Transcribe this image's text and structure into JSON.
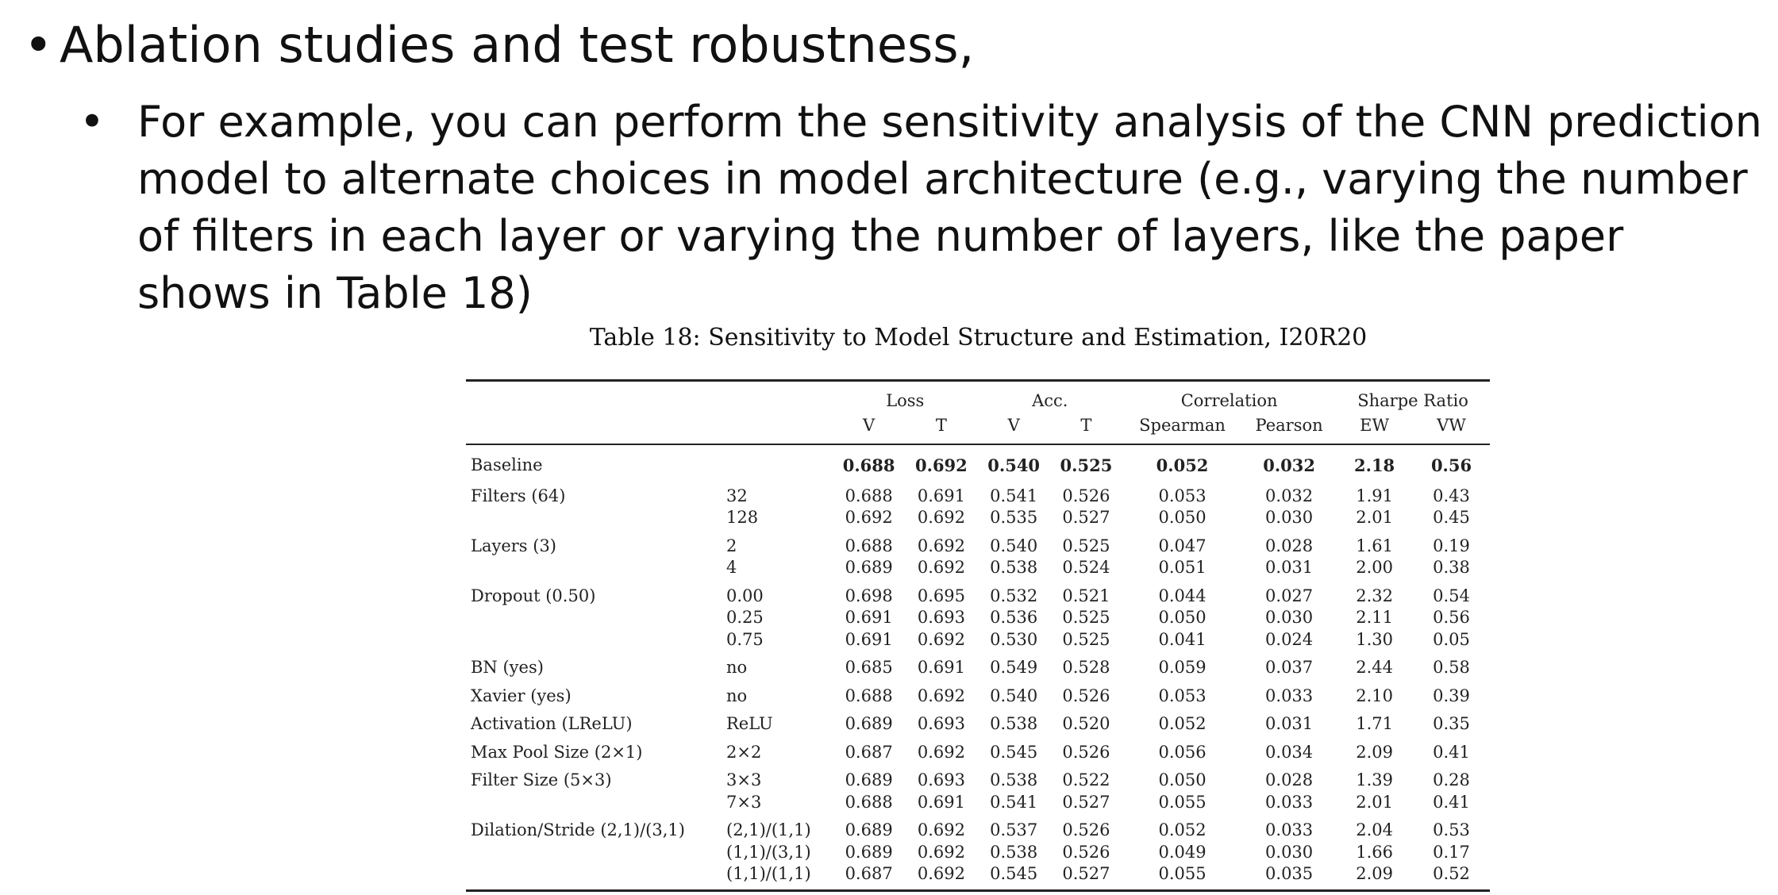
{
  "slide": {
    "bullet1": "Ablation studies and test robustness,",
    "bullet2": "For example, you can perform the sensitivity analysis of the CNN prediction model to alternate choices in model architecture (e.g., varying the number of filters in each layer or varying the number of layers, like the paper shows in Table 18)"
  },
  "table": {
    "caption": "Table 18: Sensitivity to Model Structure and Estimation, I20R20",
    "groups": [
      "Loss",
      "Acc.",
      "Correlation",
      "Sharpe Ratio"
    ],
    "subheaders": [
      "V",
      "T",
      "V",
      "T",
      "Spearman",
      "Pearson",
      "EW",
      "VW"
    ],
    "baseline": {
      "label": "Baseline",
      "values": [
        "0.688",
        "0.692",
        "0.540",
        "0.525",
        "0.052",
        "0.032",
        "2.18",
        "0.56"
      ]
    },
    "rows": [
      {
        "name": "Filters (64)",
        "var": "32",
        "v": [
          "0.688",
          "0.691",
          "0.541",
          "0.526",
          "0.053",
          "0.032",
          "1.91",
          "0.43"
        ]
      },
      {
        "name": "",
        "var": "128",
        "v": [
          "0.692",
          "0.692",
          "0.535",
          "0.527",
          "0.050",
          "0.030",
          "2.01",
          "0.45"
        ]
      },
      {
        "name": "Layers (3)",
        "var": "2",
        "v": [
          "0.688",
          "0.692",
          "0.540",
          "0.525",
          "0.047",
          "0.028",
          "1.61",
          "0.19"
        ]
      },
      {
        "name": "",
        "var": "4",
        "v": [
          "0.689",
          "0.692",
          "0.538",
          "0.524",
          "0.051",
          "0.031",
          "2.00",
          "0.38"
        ]
      },
      {
        "name": "Dropout (0.50)",
        "var": "0.00",
        "v": [
          "0.698",
          "0.695",
          "0.532",
          "0.521",
          "0.044",
          "0.027",
          "2.32",
          "0.54"
        ]
      },
      {
        "name": "",
        "var": "0.25",
        "v": [
          "0.691",
          "0.693",
          "0.536",
          "0.525",
          "0.050",
          "0.030",
          "2.11",
          "0.56"
        ]
      },
      {
        "name": "",
        "var": "0.75",
        "v": [
          "0.691",
          "0.692",
          "0.530",
          "0.525",
          "0.041",
          "0.024",
          "1.30",
          "0.05"
        ]
      },
      {
        "name": "BN (yes)",
        "var": "no",
        "v": [
          "0.685",
          "0.691",
          "0.549",
          "0.528",
          "0.059",
          "0.037",
          "2.44",
          "0.58"
        ]
      },
      {
        "name": "Xavier (yes)",
        "var": "no",
        "v": [
          "0.688",
          "0.692",
          "0.540",
          "0.526",
          "0.053",
          "0.033",
          "2.10",
          "0.39"
        ]
      },
      {
        "name": "Activation (LReLU)",
        "var": "ReLU",
        "v": [
          "0.689",
          "0.693",
          "0.538",
          "0.520",
          "0.052",
          "0.031",
          "1.71",
          "0.35"
        ]
      },
      {
        "name": "Max Pool Size (2×1)",
        "var": "2×2",
        "v": [
          "0.687",
          "0.692",
          "0.545",
          "0.526",
          "0.056",
          "0.034",
          "2.09",
          "0.41"
        ]
      },
      {
        "name": "Filter Size (5×3)",
        "var": "3×3",
        "v": [
          "0.689",
          "0.693",
          "0.538",
          "0.522",
          "0.050",
          "0.028",
          "1.39",
          "0.28"
        ]
      },
      {
        "name": "",
        "var": "7×3",
        "v": [
          "0.688",
          "0.691",
          "0.541",
          "0.527",
          "0.055",
          "0.033",
          "2.01",
          "0.41"
        ]
      },
      {
        "name": "Dilation/Stride (2,1)/(3,1)",
        "var": "(2,1)/(1,1)",
        "v": [
          "0.689",
          "0.692",
          "0.537",
          "0.526",
          "0.052",
          "0.033",
          "2.04",
          "0.53"
        ]
      },
      {
        "name": "",
        "var": "(1,1)/(3,1)",
        "v": [
          "0.689",
          "0.692",
          "0.538",
          "0.526",
          "0.049",
          "0.030",
          "1.66",
          "0.17"
        ]
      },
      {
        "name": "",
        "var": "(1,1)/(1,1)",
        "v": [
          "0.687",
          "0.692",
          "0.545",
          "0.527",
          "0.055",
          "0.035",
          "2.09",
          "0.52"
        ]
      }
    ]
  }
}
